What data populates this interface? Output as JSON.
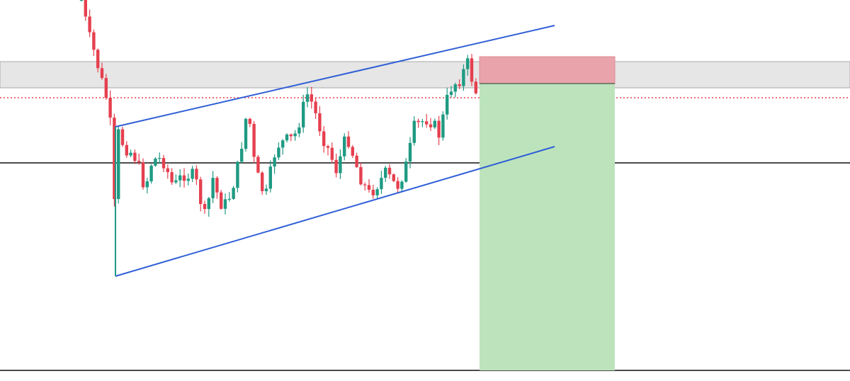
{
  "chart_data": {
    "type": "candlestick",
    "up_color": "#1f9a83",
    "down_color": "#e5404f"
  }
}
